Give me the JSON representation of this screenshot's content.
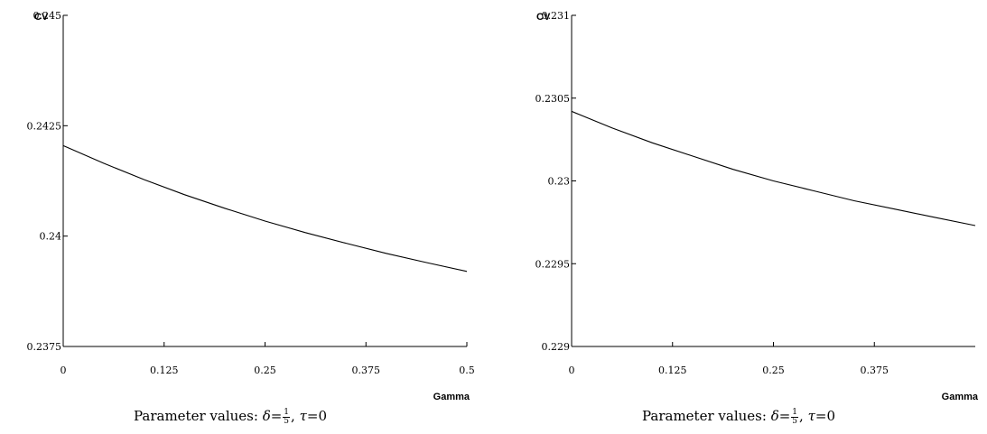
{
  "chart_data": [
    {
      "type": "line",
      "ylabel": "CV",
      "xlabel": "Gamma",
      "xlim": [
        0,
        0.5
      ],
      "ylim": [
        0.2375,
        0.245
      ],
      "x_ticks": [
        0,
        0.125,
        0.25,
        0.375,
        0.5
      ],
      "x_tick_labels": [
        "0",
        "0.125",
        "0.25",
        "0.375",
        "0.5"
      ],
      "y_ticks": [
        0.2375,
        0.24,
        0.2425,
        0.245
      ],
      "y_tick_labels": [
        "0.2375",
        "0.24",
        "0.2425",
        "0.245"
      ],
      "series": [
        {
          "x": [
            0,
            0.05,
            0.1,
            0.15,
            0.2,
            0.25,
            0.3,
            0.35,
            0.4,
            0.45,
            0.5
          ],
          "y": [
            0.24205,
            0.24165,
            0.24128,
            0.24094,
            0.24063,
            0.24034,
            0.24008,
            0.23984,
            0.23961,
            0.2394,
            0.2392
          ]
        }
      ],
      "caption": {
        "prefix": "Parameter values: ",
        "delta_symbol": "δ",
        "delta_num": "1",
        "delta_den": "5",
        "tau_symbol": "τ",
        "tau_value": "0",
        "equals": "=",
        "separator": ", "
      }
    },
    {
      "type": "line",
      "ylabel": "CV",
      "xlabel": "Gamma",
      "xlim": [
        0,
        0.5
      ],
      "ylim": [
        0.229,
        0.231
      ],
      "x_ticks": [
        0,
        0.125,
        0.25,
        0.375
      ],
      "x_tick_labels": [
        "0",
        "0.125",
        "0.25",
        "0.375"
      ],
      "y_ticks": [
        0.229,
        0.2295,
        0.23,
        0.2305,
        0.231
      ],
      "y_tick_labels": [
        "0.229",
        "0.2295",
        "0.23",
        "0.2305",
        "0.231"
      ],
      "series": [
        {
          "x": [
            0,
            0.05,
            0.1,
            0.15,
            0.2,
            0.25,
            0.3,
            0.35,
            0.4,
            0.45,
            0.5
          ],
          "y": [
            0.23042,
            0.23032,
            0.23023,
            0.23015,
            0.23007,
            0.23,
            0.22994,
            0.22988,
            0.22983,
            0.22978,
            0.22973
          ]
        }
      ],
      "caption": {
        "prefix": "Parameter values: ",
        "delta_symbol": "δ",
        "delta_num": "1",
        "delta_den": "5",
        "tau_symbol": "τ",
        "tau_value": "0",
        "equals": "=",
        "separator": ", "
      }
    }
  ]
}
